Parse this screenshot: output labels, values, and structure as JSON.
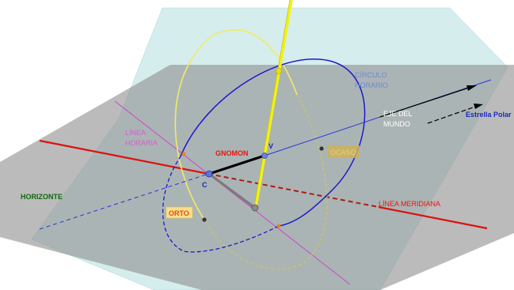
{
  "labels": {
    "circulo_1": "CÍRCULO",
    "circulo_2": "HORARIO",
    "eje_1": "EJE DEL",
    "eje_2": "MUNDO",
    "estrella": "Estrella Polar",
    "linea_horaria_1": "LÍNEA",
    "linea_horaria_2": "HORARIA",
    "gnomon": "GNOMON",
    "v": "V",
    "c": "C",
    "horizonte": "HORIZONTE",
    "linea_meridiana": "LÍNEA MERIDIANA",
    "orto": "ORTO",
    "ocaso": "OCASO"
  },
  "colors": {
    "horizon_plane": "#9e9e9e",
    "equator_plane": "#b4dede",
    "meridian_line": "#dd1111",
    "hour_circle": "#1a1acc",
    "sun_path": "#f0ea6a",
    "gnomon_axis": "#f2f214",
    "world_axis": "#2233dd",
    "hour_line": "#cc44cc",
    "orto_box": "#f7e08a",
    "orto_text": "#f04818",
    "horizon_text": "#0a6a0a"
  }
}
